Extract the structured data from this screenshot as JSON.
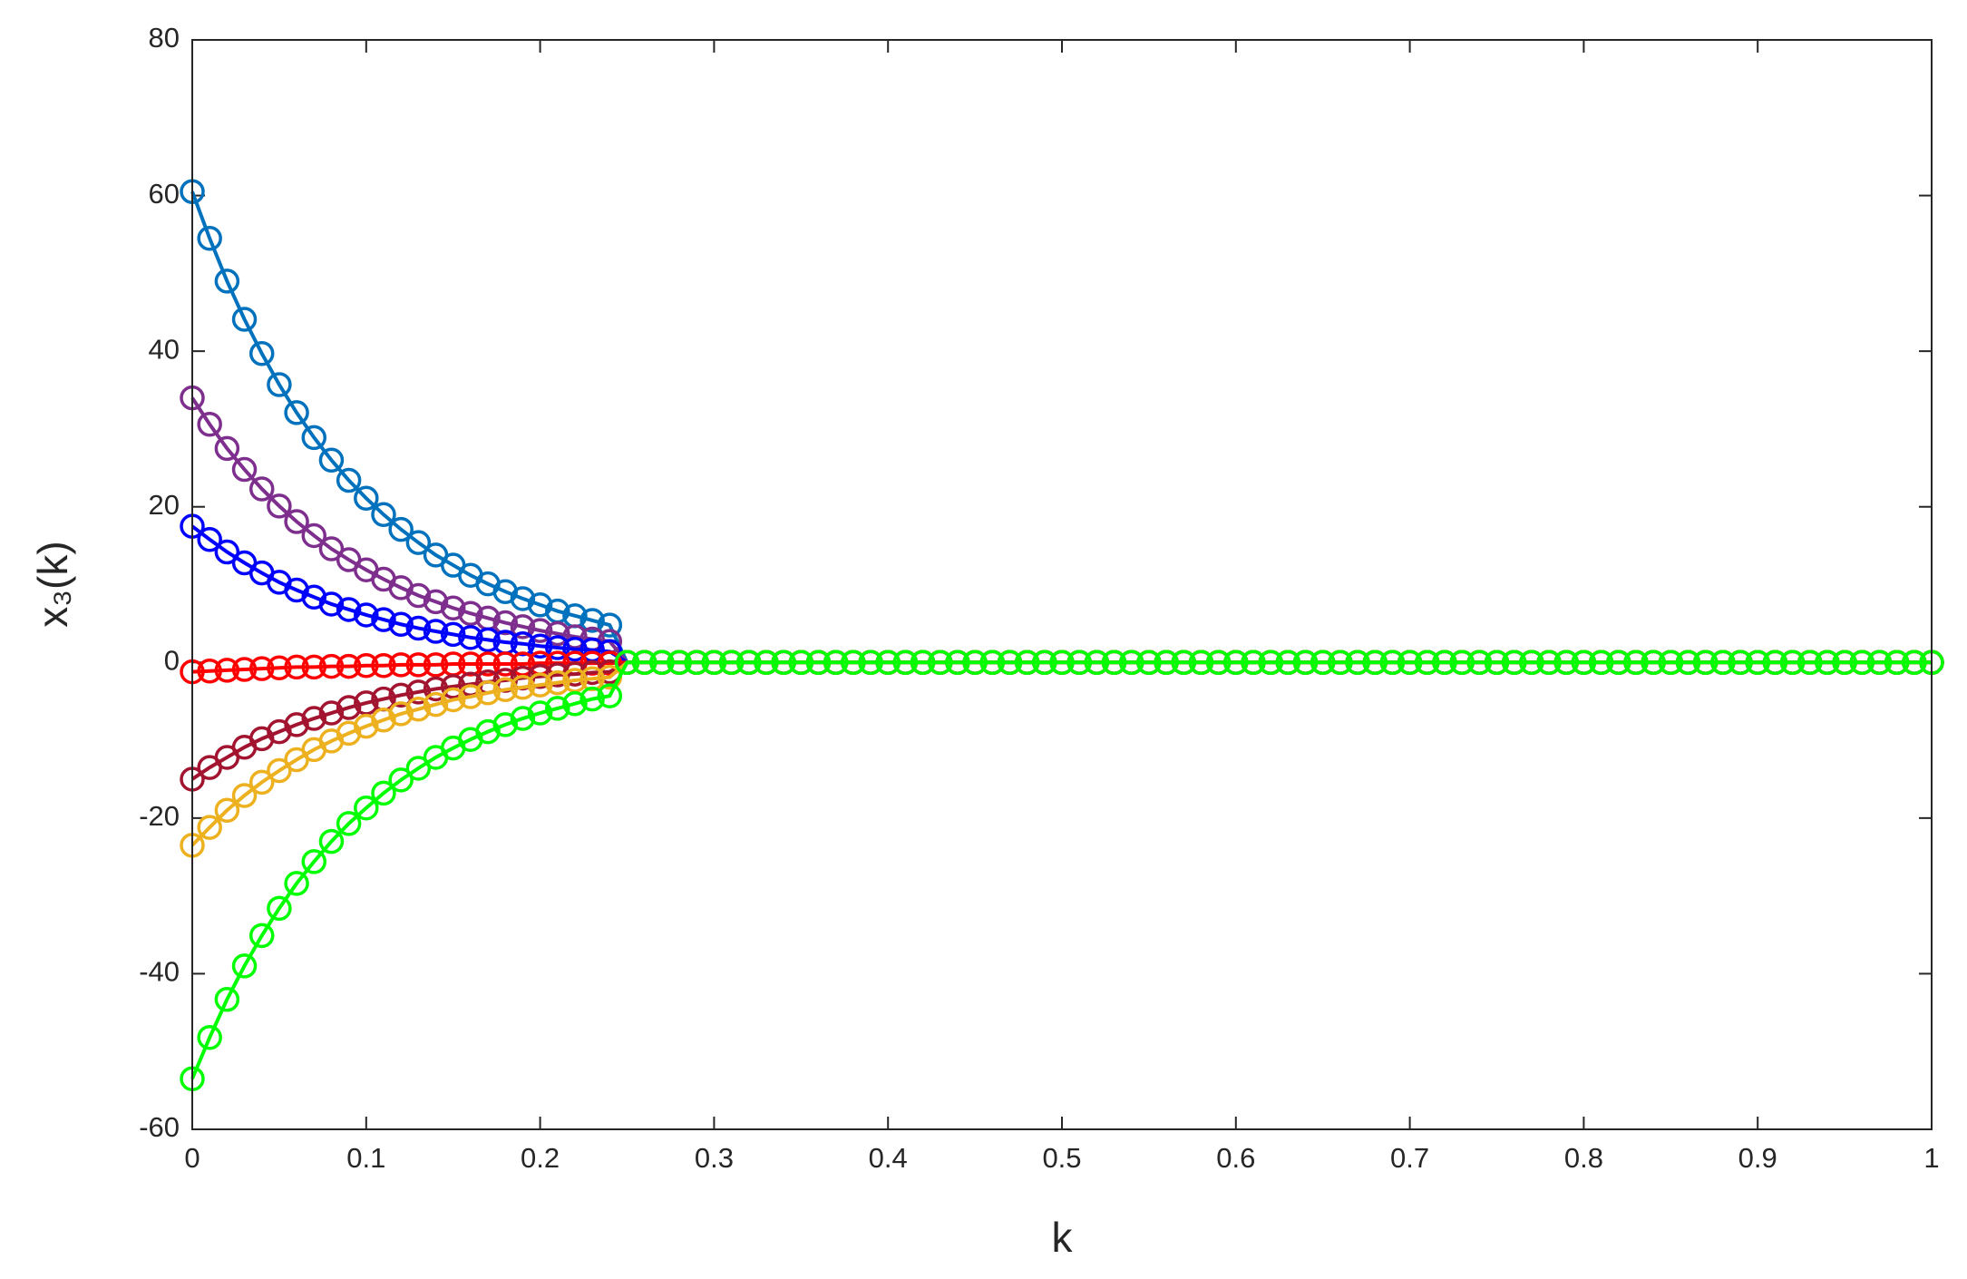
{
  "chart_data": {
    "type": "line",
    "xlabel": "k",
    "ylabel": "x₃(k)",
    "x": [
      0,
      0.01,
      0.02,
      0.03,
      0.04,
      0.05,
      0.06,
      0.07,
      0.08,
      0.09,
      0.1,
      0.11,
      0.12,
      0.13,
      0.14,
      0.15,
      0.16,
      0.17,
      0.18,
      0.19,
      0.2,
      0.21,
      0.22,
      0.23,
      0.24,
      0.25,
      0.26,
      0.27,
      0.28,
      0.29,
      0.3,
      0.31,
      0.32,
      0.33,
      0.34,
      0.35,
      0.36,
      0.37,
      0.38,
      0.39,
      0.4,
      0.41,
      0.42,
      0.43,
      0.44,
      0.45,
      0.46,
      0.47,
      0.48,
      0.49,
      0.5,
      0.51,
      0.52,
      0.53,
      0.54,
      0.55,
      0.56,
      0.57,
      0.58,
      0.59,
      0.6,
      0.61,
      0.62,
      0.63,
      0.64,
      0.65,
      0.66,
      0.67,
      0.68,
      0.69,
      0.7,
      0.71,
      0.72,
      0.73,
      0.74,
      0.75,
      0.76,
      0.77,
      0.78,
      0.79,
      0.8,
      0.81,
      0.82,
      0.83,
      0.84,
      0.85,
      0.86,
      0.87,
      0.88,
      0.89,
      0.9,
      0.91,
      0.92,
      0.93,
      0.94,
      0.95,
      0.96,
      0.97,
      0.98,
      0.99,
      1
    ],
    "series": [
      {
        "color": "#0072bd",
        "values": [
          60.5,
          54.5,
          49.0,
          44.1,
          39.7,
          35.7,
          32.1,
          28.9,
          26.0,
          23.4,
          21.1,
          19.0,
          17.1,
          15.4,
          13.8,
          12.5,
          11.2,
          10.1,
          9.1,
          8.2,
          7.4,
          6.6,
          6.0,
          5.4,
          4.8,
          0,
          0,
          0,
          0,
          0,
          0,
          0,
          0,
          0,
          0,
          0,
          0,
          0,
          0,
          0,
          0,
          0,
          0,
          0,
          0,
          0,
          0,
          0,
          0,
          0,
          0,
          0,
          0,
          0,
          0,
          0,
          0,
          0,
          0,
          0,
          0,
          0,
          0,
          0,
          0,
          0,
          0,
          0,
          0,
          0,
          0,
          0,
          0,
          0,
          0,
          0,
          0,
          0,
          0,
          0,
          0,
          0,
          0,
          0,
          0,
          0,
          0,
          0,
          0,
          0,
          0,
          0,
          0,
          0,
          0,
          0,
          0,
          0,
          0,
          0,
          0
        ]
      },
      {
        "color": "#7e2f8e",
        "values": [
          34,
          30.6,
          27.5,
          24.8,
          22.3,
          20.1,
          18.1,
          16.3,
          14.6,
          13.2,
          11.9,
          10.7,
          9.6,
          8.6,
          7.8,
          7.0,
          6.3,
          5.7,
          5.1,
          4.6,
          4.1,
          3.7,
          3.3,
          3.0,
          2.7,
          0,
          0,
          0,
          0,
          0,
          0,
          0,
          0,
          0,
          0,
          0,
          0,
          0,
          0,
          0,
          0,
          0,
          0,
          0,
          0,
          0,
          0,
          0,
          0,
          0,
          0,
          0,
          0,
          0,
          0,
          0,
          0,
          0,
          0,
          0,
          0,
          0,
          0,
          0,
          0,
          0,
          0,
          0,
          0,
          0,
          0,
          0,
          0,
          0,
          0,
          0,
          0,
          0,
          0,
          0,
          0,
          0,
          0,
          0,
          0,
          0,
          0,
          0,
          0,
          0,
          0,
          0,
          0,
          0,
          0,
          0,
          0,
          0,
          0,
          0,
          0
        ]
      },
      {
        "color": "#0000ff",
        "values": [
          17.5,
          15.8,
          14.2,
          12.8,
          11.5,
          10.3,
          9.3,
          8.4,
          7.5,
          6.8,
          6.1,
          5.5,
          4.9,
          4.4,
          4.0,
          3.6,
          3.2,
          2.9,
          2.6,
          2.4,
          2.1,
          1.9,
          1.7,
          1.6,
          1.4,
          0,
          0,
          0,
          0,
          0,
          0,
          0,
          0,
          0,
          0,
          0,
          0,
          0,
          0,
          0,
          0,
          0,
          0,
          0,
          0,
          0,
          0,
          0,
          0,
          0,
          0,
          0,
          0,
          0,
          0,
          0,
          0,
          0,
          0,
          0,
          0,
          0,
          0,
          0,
          0,
          0,
          0,
          0,
          0,
          0,
          0,
          0,
          0,
          0,
          0,
          0,
          0,
          0,
          0,
          0,
          0,
          0,
          0,
          0,
          0,
          0,
          0,
          0,
          0,
          0,
          0,
          0,
          0,
          0,
          0,
          0,
          0,
          0,
          0,
          0,
          0
        ]
      },
      {
        "color": "#ff0000",
        "values": [
          -1.2,
          -1.1,
          -1.0,
          -0.9,
          -0.8,
          -0.7,
          -0.6,
          -0.6,
          -0.5,
          -0.5,
          -0.4,
          -0.4,
          -0.3,
          -0.3,
          -0.3,
          -0.2,
          -0.2,
          -0.2,
          -0.2,
          -0.2,
          -0.1,
          -0.1,
          -0.1,
          -0.1,
          -0.1,
          0,
          0,
          0,
          0,
          0,
          0,
          0,
          0,
          0,
          0,
          0,
          0,
          0,
          0,
          0,
          0,
          0,
          0,
          0,
          0,
          0,
          0,
          0,
          0,
          0,
          0,
          0,
          0,
          0,
          0,
          0,
          0,
          0,
          0,
          0,
          0,
          0,
          0,
          0,
          0,
          0,
          0,
          0,
          0,
          0,
          0,
          0,
          0,
          0,
          0,
          0,
          0,
          0,
          0,
          0,
          0,
          0,
          0,
          0,
          0,
          0,
          0,
          0,
          0,
          0,
          0,
          0,
          0,
          0,
          0,
          0,
          0,
          0,
          0,
          0,
          0
        ]
      },
      {
        "color": "#a2142f",
        "values": [
          -15,
          -13.5,
          -12.2,
          -10.9,
          -9.8,
          -8.9,
          -8.0,
          -7.2,
          -6.5,
          -5.8,
          -5.2,
          -4.7,
          -4.2,
          -3.8,
          -3.4,
          -3.1,
          -2.8,
          -2.5,
          -2.3,
          -2.0,
          -1.8,
          -1.6,
          -1.5,
          -1.3,
          -1.2,
          0,
          0,
          0,
          0,
          0,
          0,
          0,
          0,
          0,
          0,
          0,
          0,
          0,
          0,
          0,
          0,
          0,
          0,
          0,
          0,
          0,
          0,
          0,
          0,
          0,
          0,
          0,
          0,
          0,
          0,
          0,
          0,
          0,
          0,
          0,
          0,
          0,
          0,
          0,
          0,
          0,
          0,
          0,
          0,
          0,
          0,
          0,
          0,
          0,
          0,
          0,
          0,
          0,
          0,
          0,
          0,
          0,
          0,
          0,
          0,
          0,
          0,
          0,
          0,
          0,
          0,
          0,
          0,
          0,
          0,
          0,
          0,
          0,
          0,
          0,
          0
        ]
      },
      {
        "color": "#edb120",
        "values": [
          -23.5,
          -21.2,
          -19.0,
          -17.1,
          -15.4,
          -13.9,
          -12.5,
          -11.2,
          -10.1,
          -9.1,
          -8.2,
          -7.4,
          -6.6,
          -6.0,
          -5.4,
          -4.8,
          -4.4,
          -3.9,
          -3.5,
          -3.2,
          -2.9,
          -2.6,
          -2.3,
          -2.1,
          -1.9,
          0,
          0,
          0,
          0,
          0,
          0,
          0,
          0,
          0,
          0,
          0,
          0,
          0,
          0,
          0,
          0,
          0,
          0,
          0,
          0,
          0,
          0,
          0,
          0,
          0,
          0,
          0,
          0,
          0,
          0,
          0,
          0,
          0,
          0,
          0,
          0,
          0,
          0,
          0,
          0,
          0,
          0,
          0,
          0,
          0,
          0,
          0,
          0,
          0,
          0,
          0,
          0,
          0,
          0,
          0,
          0,
          0,
          0,
          0,
          0,
          0,
          0,
          0,
          0,
          0,
          0,
          0,
          0,
          0,
          0,
          0,
          0,
          0,
          0,
          0,
          0
        ]
      },
      {
        "color": "#00ff00",
        "values": [
          -53.5,
          -48.2,
          -43.3,
          -39.0,
          -35.1,
          -31.6,
          -28.4,
          -25.6,
          -23.0,
          -20.7,
          -18.7,
          -16.8,
          -15.1,
          -13.6,
          -12.2,
          -11.0,
          -9.9,
          -8.9,
          -8.0,
          -7.2,
          -6.5,
          -5.9,
          -5.3,
          -4.7,
          -4.3,
          0,
          0,
          0,
          0,
          0,
          0,
          0,
          0,
          0,
          0,
          0,
          0,
          0,
          0,
          0,
          0,
          0,
          0,
          0,
          0,
          0,
          0,
          0,
          0,
          0,
          0,
          0,
          0,
          0,
          0,
          0,
          0,
          0,
          0,
          0,
          0,
          0,
          0,
          0,
          0,
          0,
          0,
          0,
          0,
          0,
          0,
          0,
          0,
          0,
          0,
          0,
          0,
          0,
          0,
          0,
          0,
          0,
          0,
          0,
          0,
          0,
          0,
          0,
          0,
          0,
          0,
          0,
          0,
          0,
          0,
          0,
          0,
          0,
          0,
          0,
          0
        ]
      }
    ],
    "xlim": [
      0,
      1
    ],
    "xticks": [
      0,
      0.1,
      0.2,
      0.3,
      0.4,
      0.5,
      0.6,
      0.7,
      0.8,
      0.9,
      1
    ],
    "ylim": [
      -60,
      80
    ],
    "yticks": [
      -60,
      -40,
      -20,
      0,
      20,
      40,
      60,
      80
    ],
    "grid": false
  }
}
